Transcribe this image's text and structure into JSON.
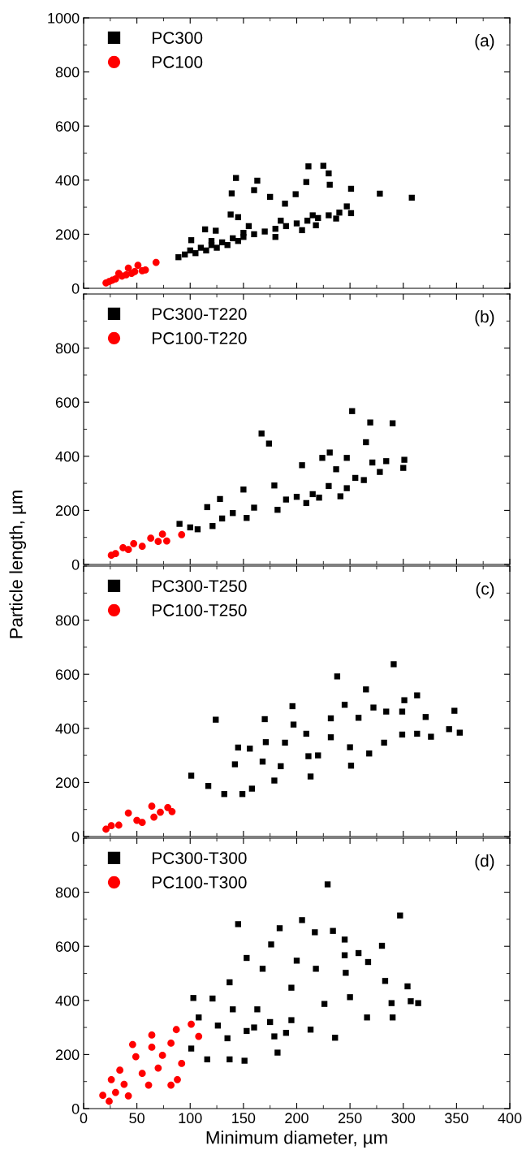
{
  "chart_data": [
    {
      "type": "scatter",
      "annotations": [
        "(a)"
      ],
      "xlim": [
        0,
        400
      ],
      "ylim": [
        0,
        1000
      ],
      "xticks": [
        0,
        50,
        100,
        150,
        200,
        250,
        300,
        350,
        400
      ],
      "yticks": [
        0,
        200,
        400,
        600,
        800,
        1000
      ],
      "tick_labels": "y",
      "legend": "top left",
      "grid": false,
      "series": [
        {
          "name": "PC300",
          "color": "#000000",
          "marker": "square",
          "x": [
            89,
            95,
            100,
            105,
            110,
            115,
            120,
            125,
            130,
            135,
            140,
            145,
            150,
            160,
            170,
            180,
            190,
            200,
            210,
            220,
            230,
            240,
            143,
            139,
            163,
            160,
            211,
            225,
            230,
            209,
            231,
            251,
            278,
            308,
            199,
            175,
            189,
            247,
            251,
            237,
            218,
            114,
            124,
            101,
            145,
            138,
            155,
            185,
            215,
            120,
            150,
            180,
            205
          ],
          "values": [
            115,
            125,
            140,
            130,
            150,
            140,
            160,
            150,
            170,
            160,
            185,
            175,
            190,
            200,
            210,
            220,
            230,
            240,
            250,
            260,
            270,
            280,
            408,
            351,
            398,
            363,
            451,
            453,
            425,
            393,
            383,
            368,
            350,
            335,
            348,
            338,
            313,
            303,
            278,
            258,
            233,
            218,
            213,
            178,
            263,
            273,
            230,
            250,
            270,
            175,
            205,
            190,
            215
          ]
        },
        {
          "name": "PC100",
          "color": "#ff0000",
          "marker": "circle",
          "x": [
            21,
            24,
            27,
            30,
            33,
            36,
            40,
            42,
            45,
            48,
            51,
            55,
            58,
            68
          ],
          "values": [
            20,
            25,
            30,
            35,
            55,
            45,
            50,
            75,
            55,
            62,
            85,
            65,
            68,
            96
          ]
        }
      ]
    },
    {
      "type": "scatter",
      "annotations": [
        "(b)"
      ],
      "ylabel": "Particle length, µm",
      "xlim": [
        0,
        400
      ],
      "ylim": [
        0,
        1000
      ],
      "xticks": [
        0,
        50,
        100,
        150,
        200,
        250,
        300,
        350,
        400
      ],
      "yticks": [
        0,
        200,
        400,
        600,
        800
      ],
      "tick_labels": "y",
      "legend": "top left",
      "grid": false,
      "series": [
        {
          "name": "PC300-T220",
          "color": "#000000",
          "marker": "square",
          "x": [
            90,
            100,
            107,
            116,
            128,
            150,
            167,
            174,
            205,
            224,
            231,
            247,
            252,
            269,
            265,
            290,
            301,
            300,
            284,
            271,
            241,
            209,
            179,
            153,
            121,
            182,
            221,
            247,
            263,
            237,
            278,
            130,
            140,
            160,
            190,
            200,
            215,
            230,
            255
          ],
          "values": [
            150,
            137,
            130,
            212,
            242,
            277,
            484,
            447,
            367,
            394,
            414,
            394,
            567,
            525,
            452,
            522,
            387,
            357,
            382,
            377,
            252,
            227,
            292,
            172,
            142,
            202,
            247,
            282,
            312,
            352,
            342,
            170,
            190,
            210,
            240,
            250,
            260,
            290,
            320
          ]
        },
        {
          "name": "PC100-T220",
          "color": "#ff0000",
          "marker": "circle",
          "x": [
            26,
            30,
            37,
            42,
            47,
            55,
            63,
            70,
            74,
            78,
            92
          ],
          "values": [
            34,
            40,
            62,
            55,
            77,
            67,
            97,
            85,
            112,
            87,
            110
          ]
        }
      ]
    },
    {
      "type": "scatter",
      "annotations": [
        "(c)"
      ],
      "xlim": [
        0,
        400
      ],
      "ylim": [
        0,
        1000
      ],
      "xticks": [
        0,
        50,
        100,
        150,
        200,
        250,
        300,
        350,
        400
      ],
      "yticks": [
        0,
        200,
        400,
        600,
        800
      ],
      "tick_labels": "y",
      "legend": "top left",
      "grid": false,
      "series": [
        {
          "name": "PC300-T250",
          "color": "#000000",
          "marker": "square",
          "x": [
            101,
            124,
            117,
            132,
            149,
            145,
            156,
            170,
            171,
            196,
            197,
            209,
            238,
            265,
            291,
            301,
            313,
            348,
            353,
            343,
            326,
            313,
            299,
            321,
            282,
            251,
            213,
            179,
            158,
            189,
            232,
            272,
            284,
            299,
            245,
            258,
            142,
            168,
            211,
            232,
            268,
            185,
            220,
            250
          ],
          "values": [
            225,
            432,
            187,
            157,
            157,
            329,
            325,
            434,
            349,
            482,
            414,
            380,
            592,
            544,
            637,
            504,
            522,
            465,
            384,
            397,
            369,
            380,
            377,
            442,
            347,
            262,
            222,
            207,
            177,
            347,
            437,
            477,
            462,
            462,
            487,
            439,
            267,
            277,
            297,
            367,
            307,
            260,
            300,
            330
          ]
        },
        {
          "name": "PC100-T250",
          "color": "#ff0000",
          "marker": "circle",
          "x": [
            21,
            26,
            33,
            42,
            50,
            55,
            64,
            66,
            72,
            79,
            83
          ],
          "values": [
            27,
            40,
            42,
            87,
            60,
            52,
            112,
            72,
            90,
            107,
            92
          ]
        }
      ]
    },
    {
      "type": "scatter",
      "annotations": [
        "(d)"
      ],
      "xlabel": "Minimum diameter, µm",
      "xlim": [
        0,
        400
      ],
      "ylim": [
        0,
        1000
      ],
      "xticks": [
        0,
        50,
        100,
        150,
        200,
        250,
        300,
        350,
        400
      ],
      "yticks": [
        0,
        200,
        400,
        600,
        800
      ],
      "legend": "top left",
      "grid": false,
      "series": [
        {
          "name": "PC300-T300",
          "color": "#000000",
          "marker": "square",
          "x": [
            229,
            297,
            145,
            205,
            184,
            217,
            234,
            245,
            280,
            258,
            245,
            267,
            246,
            283,
            304,
            314,
            307,
            289,
            290,
            266,
            236,
            250,
            213,
            153,
            137,
            103,
            101,
            116,
            137,
            151,
            182,
            176,
            200,
            179,
            153,
            126,
            163,
            195,
            226,
            121,
            108,
            140,
            168,
            195,
            218,
            135,
            160,
            175,
            190
          ],
          "values": [
            829,
            714,
            682,
            697,
            667,
            652,
            657,
            625,
            602,
            575,
            567,
            542,
            502,
            472,
            452,
            390,
            397,
            390,
            337,
            337,
            262,
            412,
            292,
            557,
            467,
            409,
            222,
            182,
            182,
            177,
            207,
            607,
            547,
            267,
            287,
            307,
            367,
            327,
            387,
            407,
            337,
            367,
            517,
            447,
            517,
            260,
            300,
            320,
            280
          ]
        },
        {
          "name": "PC100-T300",
          "color": "#ff0000",
          "marker": "circle",
          "x": [
            18,
            24,
            46,
            64,
            64,
            87,
            101,
            108,
            82,
            92,
            88,
            49,
            34,
            26,
            74,
            61,
            42,
            82,
            30,
            38,
            55,
            70
          ],
          "values": [
            49,
            27,
            237,
            272,
            227,
            292,
            312,
            267,
            242,
            167,
            107,
            192,
            142,
            107,
            197,
            87,
            47,
            87,
            60,
            90,
            130,
            150
          ]
        }
      ]
    }
  ]
}
